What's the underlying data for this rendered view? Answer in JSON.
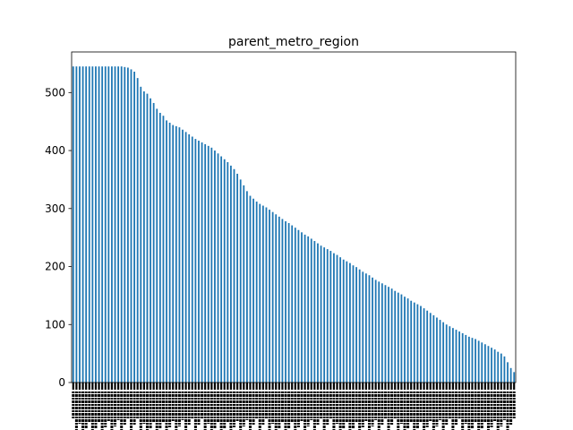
{
  "chart_data": {
    "type": "bar",
    "title": "parent_metro_region",
    "xlabel": "",
    "ylabel": "",
    "ylim": [
      0,
      570
    ],
    "yticks": [
      0,
      100,
      200,
      300,
      400,
      500
    ],
    "grid": false,
    "legend": "none",
    "bar_color": "#1f77b4",
    "values": [
      545,
      545,
      545,
      545,
      545,
      545,
      545,
      545,
      545,
      545,
      545,
      545,
      545,
      545,
      545,
      545,
      544,
      543,
      540,
      536,
      525,
      510,
      502,
      498,
      490,
      482,
      472,
      465,
      460,
      452,
      448,
      444,
      442,
      440,
      436,
      432,
      428,
      424,
      420,
      417,
      414,
      411,
      408,
      405,
      400,
      395,
      390,
      385,
      380,
      374,
      368,
      360,
      350,
      340,
      330,
      322,
      317,
      312,
      308,
      305,
      302,
      298,
      294,
      290,
      286,
      282,
      278,
      275,
      271,
      267,
      263,
      259,
      255,
      252,
      248,
      244,
      240,
      236,
      233,
      230,
      227,
      223,
      220,
      216,
      212,
      209,
      206,
      202,
      199,
      195,
      191,
      188,
      185,
      181,
      177,
      174,
      171,
      168,
      165,
      162,
      158,
      155,
      152,
      148,
      145,
      141,
      138,
      135,
      132,
      128,
      124,
      120,
      116,
      112,
      108,
      104,
      100,
      97,
      94,
      91,
      88,
      85,
      82,
      79,
      77,
      75,
      72,
      69,
      66,
      63,
      60,
      57,
      53,
      50,
      45,
      35,
      25,
      18
    ]
  }
}
